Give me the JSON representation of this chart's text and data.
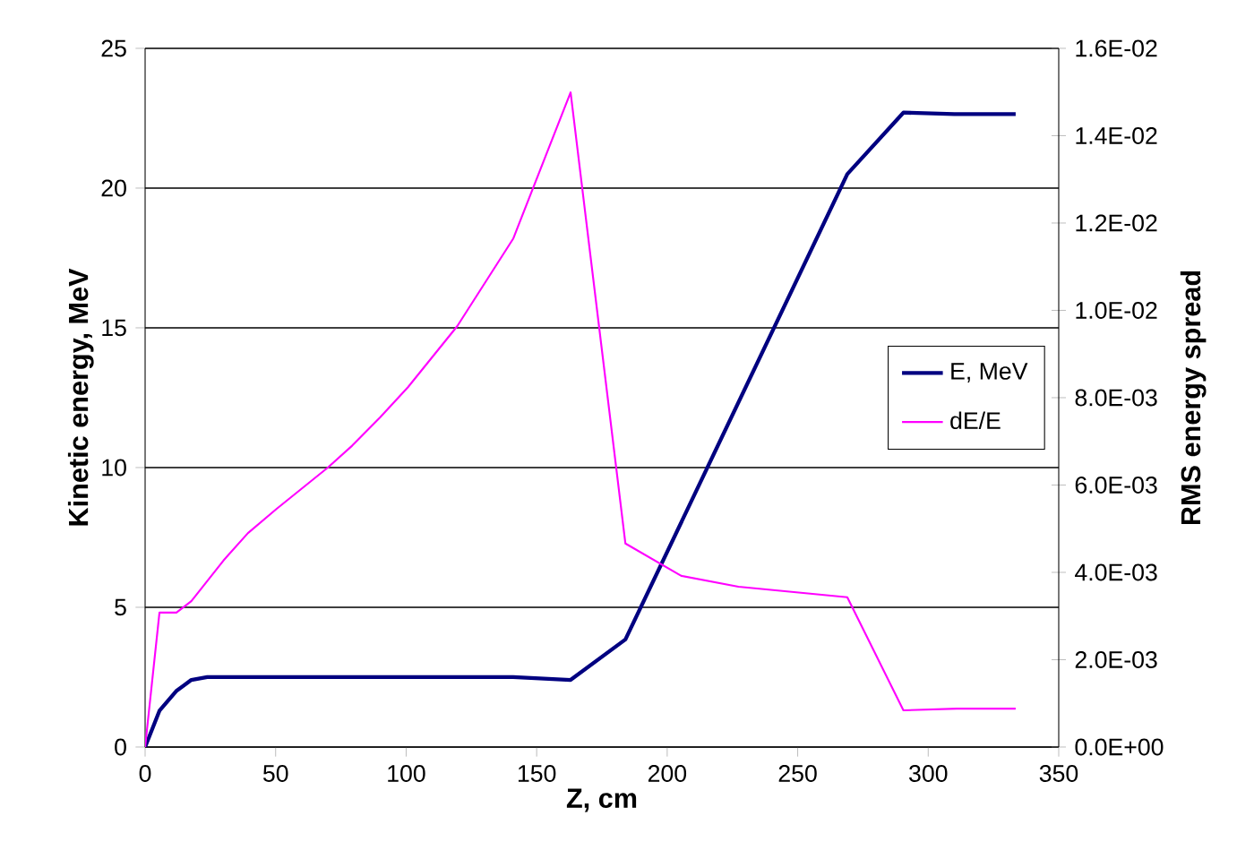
{
  "chart_data": {
    "type": "line",
    "xlabel": "Z, cm",
    "ylabel": "Kinetic energy, MeV",
    "y2label": "RMS energy spread",
    "xlim": [
      0,
      350
    ],
    "xticks": [
      0,
      50,
      100,
      150,
      200,
      250,
      300,
      350
    ],
    "ylim": [
      0,
      25
    ],
    "yticks": [
      0,
      5,
      10,
      15,
      20,
      25
    ],
    "y2lim": [
      0,
      0.016
    ],
    "y2ticks": [
      {
        "value": 0,
        "label": "0.0E+00"
      },
      {
        "value": 0.002,
        "label": "2.0E-03"
      },
      {
        "value": 0.004,
        "label": "4.0E-03"
      },
      {
        "value": 0.006,
        "label": "6.0E-03"
      },
      {
        "value": 0.008,
        "label": "8.0E-03"
      },
      {
        "value": 0.01,
        "label": "1.0E-02"
      },
      {
        "value": 0.012,
        "label": "1.2E-02"
      },
      {
        "value": 0.014,
        "label": "1.4E-02"
      },
      {
        "value": 0.016,
        "label": "1.6E-02"
      }
    ],
    "grid": "y",
    "legend": "right",
    "marker": "none",
    "line_style": "solid",
    "series": [
      {
        "name": "E, MeV",
        "color": "#000080",
        "x": [
          0,
          5.5,
          11.9,
          17.7,
          23.8,
          141,
          163,
          184,
          269,
          290.5,
          310,
          333.5
        ],
        "values": [
          0,
          1.3,
          2.0,
          2.4,
          2.5,
          2.5,
          2.4,
          3.85,
          20.5,
          22.7,
          22.65,
          22.65
        ]
      },
      {
        "name": "dE/E",
        "color": "#ff00ff",
        "axis": "y2",
        "x": [
          0,
          5.5,
          12,
          17.7,
          30,
          39.4,
          50.3,
          70,
          79.3,
          90,
          100.7,
          119.6,
          141,
          163,
          184,
          205.4,
          227.3,
          269,
          290.5,
          311,
          333.5
        ],
        "values": [
          0,
          0.00308,
          0.00308,
          0.00334,
          0.00427,
          0.0049,
          0.00545,
          0.0064,
          0.0069,
          0.00755,
          0.00824,
          0.00964,
          0.01164,
          0.01499,
          0.00466,
          0.00392,
          0.00367,
          0.00343,
          0.00084,
          0.00088,
          0.00088
        ]
      }
    ]
  }
}
